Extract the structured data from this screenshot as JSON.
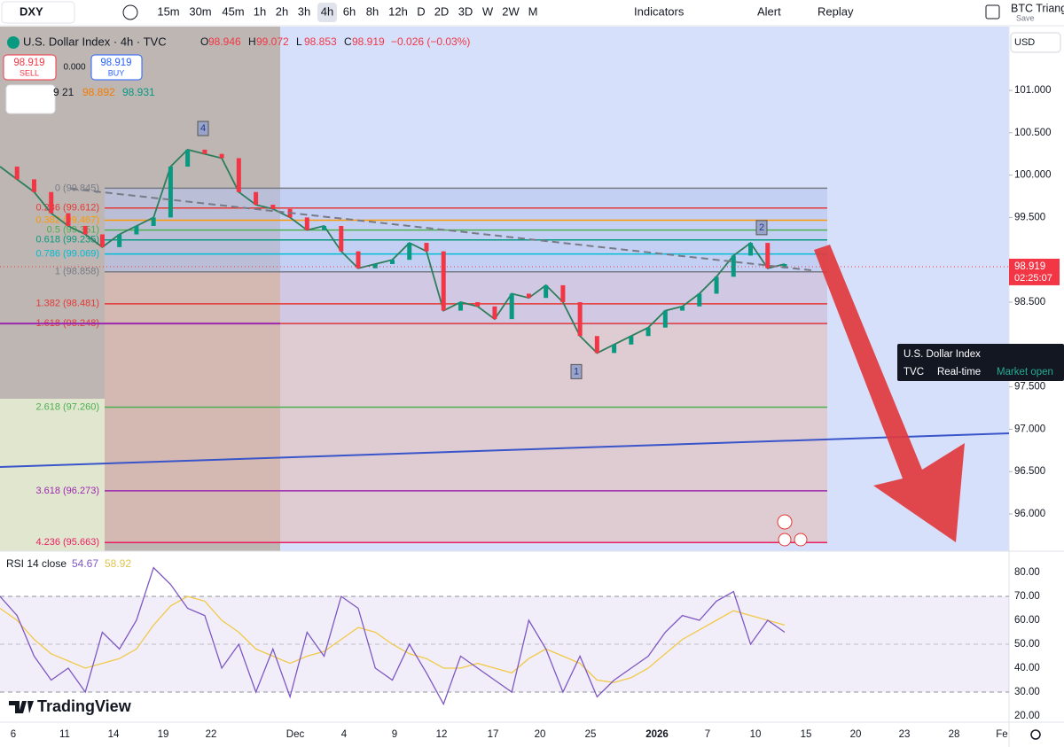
{
  "toolbar": {
    "symbol": "DXY",
    "intervals": [
      "15m",
      "30m",
      "45m",
      "1h",
      "2h",
      "3h",
      "4h",
      "6h",
      "8h",
      "12h",
      "D",
      "2D",
      "3D",
      "W",
      "2W",
      "M"
    ],
    "indicators": "Indicators",
    "alert": "Alert",
    "replay": "Replay",
    "layout_name": "BTC Triang",
    "save": "Save"
  },
  "legend": {
    "title": "U.S. Dollar Index · 4h · TVC",
    "ohlc": [
      {
        "label": "O",
        "value": 98.946
      },
      {
        "label": "H",
        "value": 99.072
      },
      {
        "label": "L",
        "value": 98.853
      },
      {
        "label": "C",
        "value": 98.919
      }
    ],
    "change": "−0.026 (−0.03%)",
    "sell": {
      "price": 98.919,
      "label": "SELL"
    },
    "spread": "0.000",
    "buy": {
      "price": 98.919,
      "label": "BUY"
    },
    "ma_row": [
      "9 21",
      "98.892",
      "98.931"
    ]
  },
  "price_axis": {
    "currency": "USD",
    "ticks": [
      {
        "value": 101,
        "label": "101.000"
      },
      {
        "value": 100.5,
        "label": "100.500"
      },
      {
        "value": 100,
        "label": "100.000"
      },
      {
        "value": 99.5,
        "label": "99.500"
      },
      {
        "value": 98.5,
        "label": "98.500"
      },
      {
        "value": 97.5,
        "label": "97.500"
      },
      {
        "value": 97,
        "label": "97.000"
      },
      {
        "value": 96.5,
        "label": "96.500"
      },
      {
        "value": 96,
        "label": "96.000"
      }
    ],
    "last_price": 98.919,
    "countdown": "02:25:07"
  },
  "fib_levels": [
    {
      "label": "0 (99.845)",
      "price": 99.845,
      "color": "#787b86"
    },
    {
      "label": "0.236 (99.612)",
      "price": 99.612,
      "color": "#e53935"
    },
    {
      "label": "0.382 (99.467)",
      "price": 99.467,
      "color": "#ff9800"
    },
    {
      "label": "0.5 (99.351)",
      "price": 99.351,
      "color": "#4caf50"
    },
    {
      "label": "0.618 (99.235)",
      "price": 99.235,
      "color": "#089981"
    },
    {
      "label": "0.786 (99.069)",
      "price": 99.069,
      "color": "#00bcd4"
    },
    {
      "label": "1 (98.858)",
      "price": 98.858,
      "color": "#787b86"
    },
    {
      "label": "1.382 (98.481)",
      "price": 98.481,
      "color": "#e53935"
    },
    {
      "label": "1.618 (98.248)",
      "price": 98.248,
      "color": "#e53935"
    },
    {
      "label": "2.618 (97.260)",
      "price": 97.26,
      "color": "#4caf50"
    },
    {
      "label": "3.618 (96.273)",
      "price": 96.273,
      "color": "#9c27b0"
    },
    {
      "label": "4.236 (95.663)",
      "price": 95.663,
      "color": "#e91e63"
    }
  ],
  "waves": [
    {
      "label": "4",
      "price": 100.55
    },
    {
      "label": "2",
      "price": 99.38
    },
    {
      "label": "1",
      "price": 97.68
    }
  ],
  "price_path": [
    100.1,
    99.95,
    99.8,
    99.55,
    99.4,
    99.3,
    99.15,
    99.3,
    99.4,
    99.5,
    100.1,
    100.3,
    100.25,
    100.2,
    99.8,
    99.65,
    99.6,
    99.5,
    99.35,
    99.4,
    99.1,
    98.9,
    98.95,
    99.0,
    99.2,
    99.1,
    98.4,
    98.5,
    98.45,
    98.3,
    98.6,
    98.55,
    98.7,
    98.5,
    98.1,
    97.9,
    98.0,
    98.1,
    98.2,
    98.4,
    98.45,
    98.6,
    98.8,
    99.05,
    99.2,
    98.9,
    98.95
  ],
  "tooltip": {
    "title": "U.S. Dollar Index",
    "source": "TVC",
    "mode": "Real-time",
    "status": "Market open"
  },
  "rsi": {
    "label": "RSI 14 close",
    "value": 54.67,
    "ma_value": 58.92,
    "ticks": [
      {
        "value": 80,
        "label": "80.00"
      },
      {
        "value": 70,
        "label": "70.00"
      },
      {
        "value": 60,
        "label": "60.00"
      },
      {
        "value": 50,
        "label": "50.00"
      },
      {
        "value": 40,
        "label": "40.00"
      },
      {
        "value": 30,
        "label": "30.00"
      },
      {
        "value": 20,
        "label": "20.00"
      }
    ],
    "values": [
      70,
      62,
      45,
      35,
      40,
      30,
      55,
      48,
      60,
      82,
      75,
      65,
      62,
      40,
      50,
      30,
      48,
      28,
      55,
      45,
      70,
      65,
      40,
      35,
      50,
      38,
      25,
      45,
      40,
      35,
      30,
      60,
      48,
      30,
      45,
      28,
      35,
      40,
      45,
      55,
      62,
      60,
      68,
      72,
      50,
      60,
      55
    ],
    "ma": [
      65,
      60,
      52,
      46,
      43,
      40,
      42,
      44,
      48,
      58,
      66,
      70,
      68,
      60,
      55,
      48,
      45,
      42,
      45,
      47,
      52,
      57,
      55,
      50,
      46,
      44,
      40,
      40,
      42,
      40,
      38,
      44,
      48,
      45,
      42,
      35,
      34,
      36,
      40,
      46,
      52,
      56,
      60,
      64,
      62,
      60,
      58
    ]
  },
  "time_axis": [
    "6",
    "11",
    "14",
    "19",
    "22",
    "Dec",
    "4",
    "9",
    "12",
    "17",
    "20",
    "25",
    "2026",
    "7",
    "10",
    "15",
    "20",
    "23",
    "28",
    "Fe"
  ],
  "brand": "TradingView"
}
